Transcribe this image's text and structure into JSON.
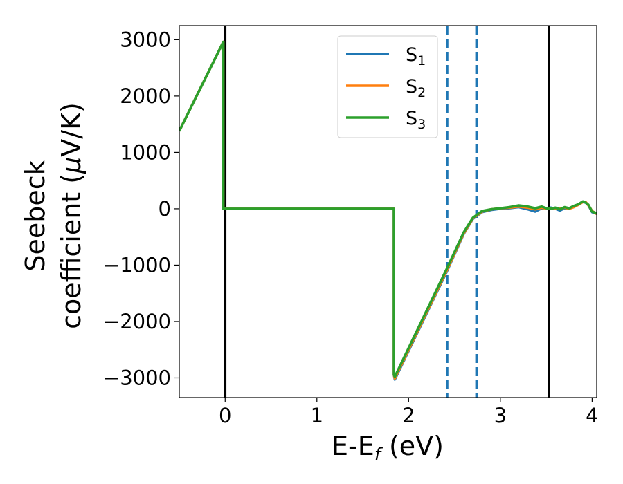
{
  "chart_data": {
    "type": "line",
    "title": "",
    "xlabel": "E-E",
    "xlabel_sub": "f",
    "xlabel_tail": " (eV)",
    "ylabel_line1": "Seebeck",
    "ylabel_line2": "coefficient  (",
    "ylabel_mu": "μ",
    "ylabel_tail": "V/K)",
    "xlim": [
      -0.5,
      4.05
    ],
    "ylim": [
      -3350,
      3250
    ],
    "x_ticks": [
      0,
      1,
      2,
      3,
      4
    ],
    "x_tick_labels": [
      "0",
      "1",
      "2",
      "3",
      "4"
    ],
    "y_ticks": [
      3000,
      2000,
      1000,
      0,
      -1000,
      -2000,
      -3000
    ],
    "y_tick_labels": [
      "3000",
      "2000",
      "1000",
      "0",
      "−1000",
      "−2000",
      "−3000"
    ],
    "grid": false,
    "legend_position": "top-right",
    "vertical_lines": [
      {
        "x": 0,
        "style": "solid",
        "color": "#000000"
      },
      {
        "x": 2.42,
        "style": "dashed",
        "color": "#1f77b4"
      },
      {
        "x": 2.74,
        "style": "dashed",
        "color": "#1f77b4"
      },
      {
        "x": 3.53,
        "style": "solid",
        "color": "#000000"
      }
    ],
    "series": [
      {
        "name": "S",
        "sub": "1",
        "color": "#1f77b4",
        "x": [
          -0.5,
          -0.02,
          -0.02,
          1.84,
          1.84,
          1.85,
          2.42,
          2.6,
          2.7,
          2.8,
          2.9,
          3.0,
          3.1,
          3.2,
          3.3,
          3.38,
          3.45,
          3.5,
          3.55,
          3.6,
          3.65,
          3.7,
          3.75,
          3.8,
          3.85,
          3.9,
          3.93,
          3.96,
          4.0,
          4.05
        ],
        "y": [
          1380,
          2960,
          0,
          0,
          -2950,
          -3030,
          -1100,
          -450,
          -180,
          -60,
          -20,
          0,
          10,
          30,
          -10,
          -50,
          10,
          0,
          20,
          0,
          -30,
          10,
          0,
          40,
          80,
          120,
          110,
          60,
          -60,
          -90
        ]
      },
      {
        "name": "S",
        "sub": "2",
        "color": "#ff7f0e",
        "x": [
          -0.5,
          -0.02,
          -0.02,
          1.84,
          1.84,
          1.85,
          2.42,
          2.6,
          2.7,
          2.8,
          2.9,
          3.0,
          3.1,
          3.2,
          3.3,
          3.38,
          3.45,
          3.5,
          3.55,
          3.6,
          3.65,
          3.7,
          3.75,
          3.8,
          3.85,
          3.9,
          3.93,
          3.96,
          4.0,
          4.05
        ],
        "y": [
          1380,
          2960,
          0,
          0,
          -2950,
          -3010,
          -1080,
          -440,
          -170,
          -50,
          -10,
          10,
          20,
          40,
          20,
          -10,
          20,
          0,
          10,
          10,
          0,
          20,
          0,
          30,
          70,
          120,
          120,
          60,
          -40,
          -90
        ]
      },
      {
        "name": "S",
        "sub": "3",
        "color": "#2ca02c",
        "x": [
          -0.5,
          -0.02,
          -0.02,
          1.84,
          1.84,
          1.85,
          2.42,
          2.6,
          2.7,
          2.8,
          2.9,
          3.0,
          3.1,
          3.2,
          3.3,
          3.38,
          3.45,
          3.5,
          3.55,
          3.6,
          3.65,
          3.7,
          3.75,
          3.8,
          3.85,
          3.9,
          3.93,
          3.96,
          4.0,
          4.05
        ],
        "y": [
          1380,
          2960,
          0,
          0,
          -2950,
          -2980,
          -1050,
          -420,
          -160,
          -40,
          -10,
          10,
          30,
          60,
          40,
          10,
          40,
          10,
          0,
          20,
          -10,
          30,
          10,
          50,
          80,
          130,
          110,
          70,
          -50,
          -80
        ]
      }
    ]
  }
}
